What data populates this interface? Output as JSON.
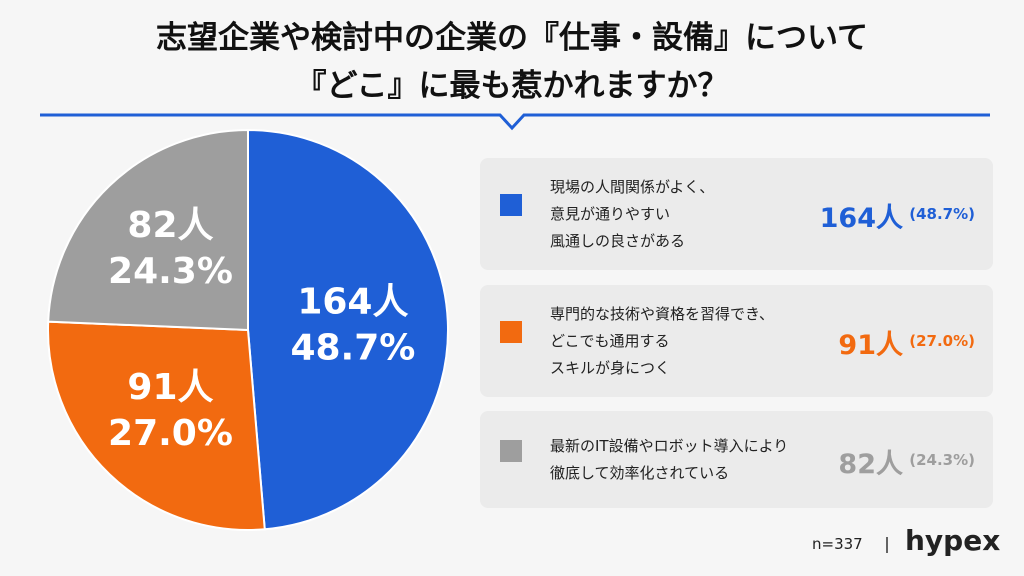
{
  "chart_data": {
    "type": "pie",
    "title": "志望企業や検討中の企業の『仕事・設備』について\n『どこ』に最も惹かれますか？",
    "categories": [
      "現場の人間関係がよく、\n意見が通りやすい\n風通しの良さがある",
      "専門的な技術や資格を習得でき、\nどこでも通用する\nスキルが身につく",
      "最新のIT設備やロボット導入により\n徹底して効率化されている"
    ],
    "values": [
      164,
      91,
      82
    ],
    "value_labels": [
      "164人",
      "91人",
      "82人"
    ],
    "percents": [
      48.7,
      27.0,
      24.3
    ],
    "percent_labels": [
      "48.7%",
      "27.0%",
      "24.3%"
    ],
    "legend_percent_labels": [
      "(48.7%)",
      "(27.0%)",
      "(24.3%)"
    ],
    "colors": [
      "#1f5fd6",
      "#f26a10",
      "#9e9e9e"
    ],
    "note": "n=337",
    "brand": "hypex"
  }
}
